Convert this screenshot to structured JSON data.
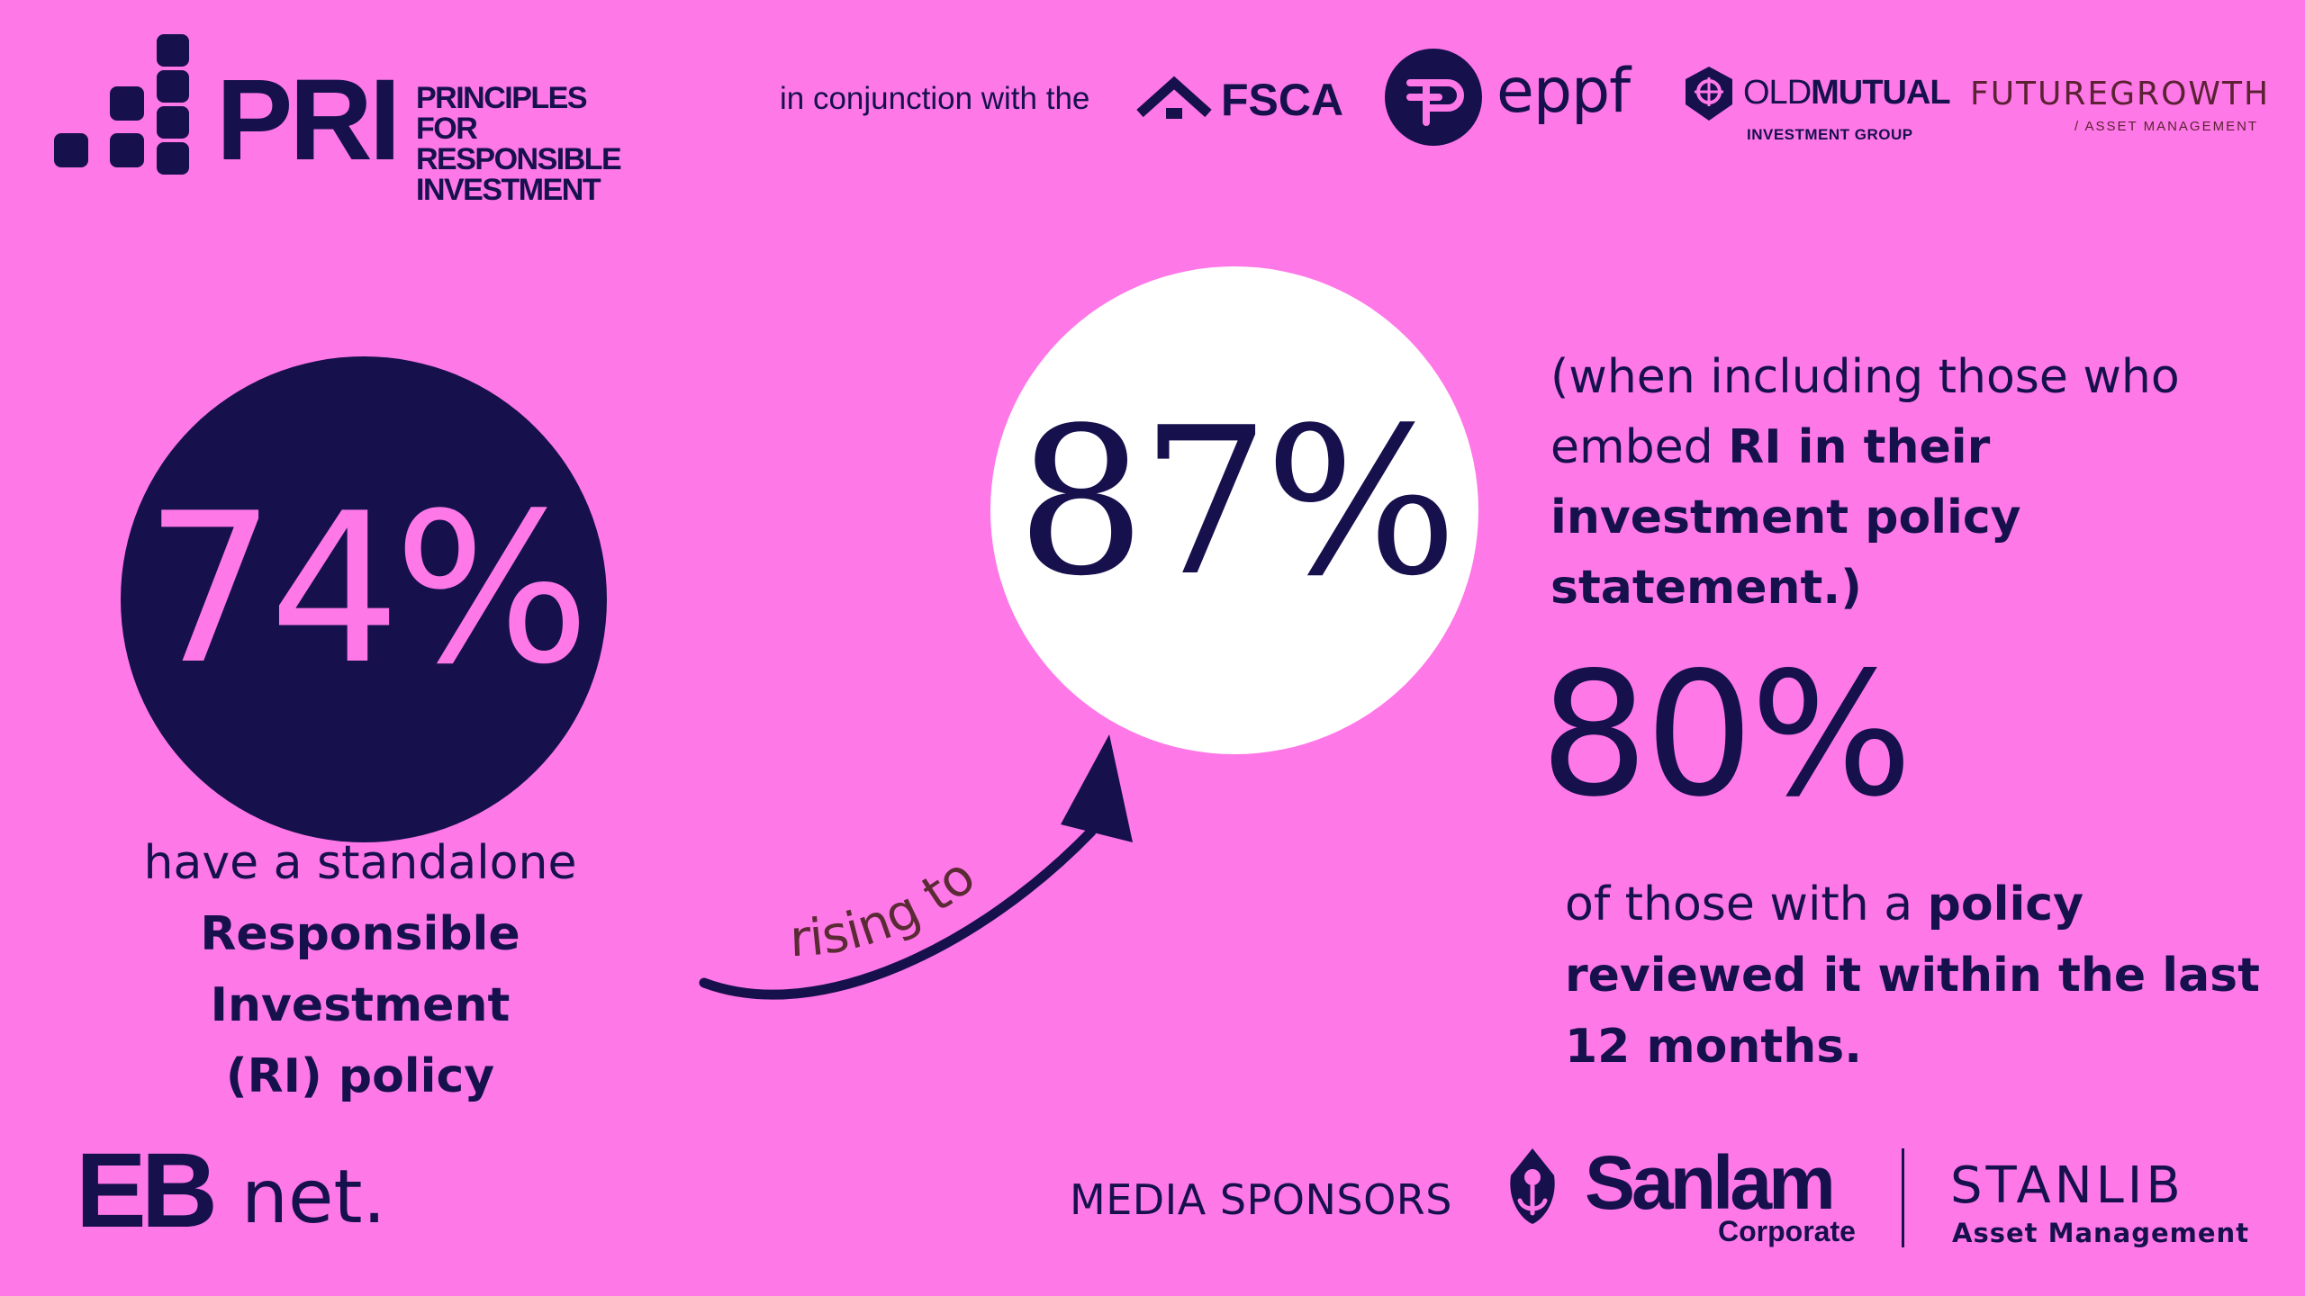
{
  "header": {
    "pri_logo_text": "PRI",
    "pri_full_name": [
      "PRINCIPLES FOR",
      "RESPONSIBLE",
      "INVESTMENT"
    ],
    "conjunction_text": "in conjunction with the",
    "partners": {
      "fsca": "FSCA",
      "eppf": "eppf",
      "old_mutual_light": "OLD",
      "old_mutual_bold": "MUTUAL",
      "old_mutual_sub": "INVESTMENT GROUP",
      "futuregrowth": "FUTUREGROWTH",
      "futuregrowth_sub": "/ ASSET MANAGEMENT"
    }
  },
  "stats": {
    "standalone": {
      "value": "74%",
      "caption_line1": "have a standalone",
      "caption_line2": "Responsible Investment",
      "caption_line3": "(RI) policy"
    },
    "arrow_label": "rising to",
    "including": {
      "value": "87%",
      "note_part1": "(when including those who embed ",
      "note_bold": "RI in their investment policy statement.)"
    },
    "reviewed": {
      "value": "80%",
      "text_part1": "of those with a ",
      "text_bold": "policy reviewed it within the last 12 months."
    }
  },
  "footer": {
    "eb_bold": "EB",
    "eb_light": "net.",
    "media_sponsors_label": "MEDIA SPONSORS",
    "sanlam": "Sanlam",
    "sanlam_sub": "Corporate",
    "stanlib": "STANLIB",
    "stanlib_sub": "Asset Management"
  },
  "colors": {
    "background": "#ff78e8",
    "navy": "#16104d",
    "white": "#ffffff"
  }
}
